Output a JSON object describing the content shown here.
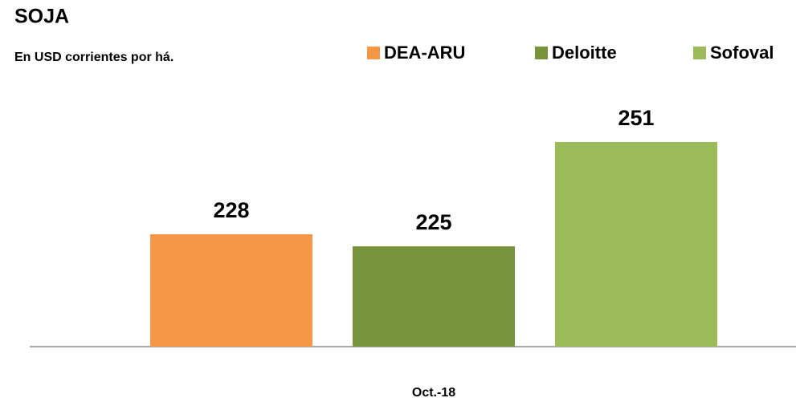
{
  "chart_data": {
    "type": "bar",
    "title": "SOJA",
    "subtitle": "En USD corrientes por há.",
    "categories": [
      "Oct.-18"
    ],
    "series": [
      {
        "name": "DEA-ARU",
        "color": "#f79646",
        "values": [
          228
        ]
      },
      {
        "name": "Deloitte",
        "color": "#77933c",
        "values": [
          225
        ]
      },
      {
        "name": "Sofoval",
        "color": "#9bbb59",
        "values": [
          251
        ]
      }
    ],
    "ylim": [
      200,
      260
    ],
    "legend": "top-right"
  }
}
